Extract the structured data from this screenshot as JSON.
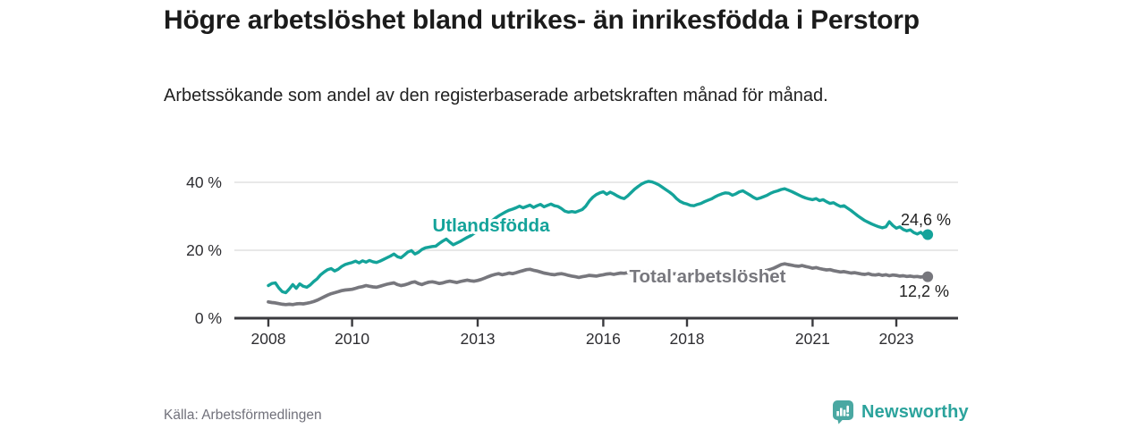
{
  "header": {
    "title": "Högre arbetslöshet bland utrikes- än inrikesfödda i Perstorp",
    "subtitle": "Arbetssökande som andel av den registerbaserade arbetskraften månad för månad."
  },
  "footer": {
    "source": "Källa: Arbetsförmedlingen",
    "brand": "Newsworthy",
    "brand_icon": "bar-chart-speech-bubble-icon"
  },
  "colors": {
    "accent_teal": "#14a39a",
    "series_gray": "#77777d",
    "axis": "#3a3a3e",
    "axis_text": "#2e2e32",
    "grid": "#d9d9d9",
    "title_text": "#1b1b1b",
    "muted_text": "#71717b",
    "end_label_text": "#222222",
    "brand_teal": "#2ba39c",
    "brand_icon_teal": "#4aa8a2"
  },
  "chart_data": {
    "type": "line",
    "title": "Högre arbetslöshet bland utrikes- än inrikesfödda i Perstorp",
    "subtitle": "Arbetssökande som andel av den registerbaserade arbetskraften månad för månad.",
    "unit": "%",
    "frequency": "monthly",
    "x_start": "2008-01",
    "x_end": "2023-10",
    "x_ticks": [
      2008,
      2010,
      2013,
      2016,
      2018,
      2021,
      2023
    ],
    "y_ticks": [
      {
        "value": 0,
        "label": "0 %"
      },
      {
        "value": 20,
        "label": "20 %"
      },
      {
        "value": 40,
        "label": "40 %"
      }
    ],
    "ylim": [
      0,
      42
    ],
    "xlim_years": [
      2007.2,
      2024.5
    ],
    "grid": "horizontal-only",
    "legend_position": "inline-labels",
    "series": [
      {
        "name": "Utlandsfödda",
        "color": "#14a39a",
        "end_label": "24,6 %",
        "last_value": 24.6,
        "values": [
          9.6,
          10.2,
          10.4,
          8.9,
          7.8,
          7.5,
          8.6,
          9.9,
          8.8,
          10.1,
          9.4,
          9.1,
          9.8,
          10.8,
          11.6,
          12.8,
          13.6,
          14.3,
          14.6,
          13.9,
          14.4,
          15.2,
          15.8,
          16.1,
          16.4,
          16.8,
          16.3,
          16.9,
          16.5,
          17.0,
          16.6,
          16.4,
          16.8,
          17.3,
          17.8,
          18.3,
          18.9,
          18.1,
          17.8,
          18.6,
          19.5,
          19.9,
          18.9,
          19.4,
          20.2,
          20.7,
          20.9,
          21.1,
          21.2,
          22.0,
          22.7,
          23.3,
          22.4,
          21.6,
          22.1,
          22.6,
          23.2,
          23.8,
          24.3,
          25.0,
          25.6,
          26.3,
          27.1,
          27.9,
          28.6,
          29.4,
          30.1,
          30.7,
          31.3,
          31.8,
          32.1,
          32.5,
          33.0,
          32.5,
          32.9,
          33.3,
          32.6,
          33.1,
          33.5,
          32.8,
          33.2,
          33.6,
          33.1,
          32.9,
          32.3,
          31.5,
          31.2,
          31.4,
          31.2,
          31.6,
          32.0,
          33.0,
          34.5,
          35.6,
          36.4,
          36.9,
          37.2,
          36.5,
          37.1,
          36.6,
          36.0,
          35.5,
          35.2,
          36.0,
          37.0,
          38.0,
          38.8,
          39.5,
          40.0,
          40.3,
          40.1,
          39.7,
          39.2,
          38.5,
          37.8,
          37.1,
          36.3,
          35.2,
          34.4,
          33.9,
          33.6,
          33.2,
          33.1,
          33.5,
          33.8,
          34.3,
          34.7,
          35.1,
          35.7,
          36.2,
          36.6,
          36.9,
          36.8,
          36.2,
          36.6,
          37.2,
          37.5,
          36.9,
          36.3,
          35.6,
          35.1,
          35.4,
          35.8,
          36.2,
          36.8,
          37.2,
          37.5,
          37.9,
          38.1,
          37.7,
          37.3,
          36.8,
          36.3,
          35.8,
          35.4,
          35.1,
          34.9,
          35.2,
          34.6,
          34.9,
          34.3,
          33.8,
          34.0,
          33.4,
          32.9,
          33.1,
          32.4,
          31.7,
          30.9,
          30.1,
          29.4,
          28.7,
          28.2,
          27.7,
          27.3,
          26.9,
          26.6,
          26.9,
          28.4,
          27.3,
          26.5,
          26.9,
          26.1,
          25.7,
          26.0,
          25.2,
          24.8,
          25.3,
          24.4,
          24.6
        ]
      },
      {
        "name": "Total arbetslöshet",
        "color": "#77777d",
        "end_label": "12,2 %",
        "last_value": 12.2,
        "values": [
          4.8,
          4.6,
          4.5,
          4.3,
          4.1,
          4.0,
          4.1,
          4.0,
          4.2,
          4.3,
          4.2,
          4.4,
          4.6,
          4.9,
          5.3,
          5.8,
          6.3,
          6.8,
          7.2,
          7.5,
          7.8,
          8.1,
          8.3,
          8.4,
          8.5,
          8.8,
          9.1,
          9.3,
          9.6,
          9.4,
          9.2,
          9.1,
          9.4,
          9.7,
          10.0,
          10.2,
          10.4,
          9.9,
          9.6,
          9.8,
          10.1,
          10.5,
          10.7,
          10.2,
          9.9,
          10.3,
          10.6,
          10.7,
          10.5,
          10.2,
          10.4,
          10.7,
          10.9,
          10.7,
          10.5,
          10.8,
          11.0,
          11.2,
          11.0,
          10.9,
          11.1,
          11.4,
          11.8,
          12.2,
          12.6,
          12.9,
          13.1,
          12.8,
          13.0,
          13.3,
          13.1,
          13.4,
          13.7,
          14.0,
          14.3,
          14.4,
          14.1,
          13.9,
          13.6,
          13.3,
          13.1,
          12.9,
          12.8,
          13.0,
          13.1,
          12.9,
          12.6,
          12.4,
          12.2,
          12.0,
          12.2,
          12.4,
          12.6,
          12.5,
          12.4,
          12.6,
          12.8,
          13.0,
          13.1,
          12.9,
          13.1,
          13.3,
          13.2,
          13.4,
          13.3,
          13.5,
          13.4,
          13.6,
          13.7,
          13.5,
          13.4,
          13.2,
          13.3,
          13.1,
          13.0,
          12.9,
          13.1,
          13.0,
          12.8,
          12.9,
          13.0,
          13.1,
          12.9,
          12.8,
          12.6,
          12.7,
          12.9,
          13.0,
          13.2,
          13.3,
          13.1,
          13.0,
          12.9,
          12.7,
          12.8,
          13.0,
          13.2,
          13.4,
          13.3,
          13.5,
          13.6,
          13.8,
          13.9,
          14.1,
          14.4,
          14.8,
          15.3,
          15.8,
          16.0,
          15.8,
          15.6,
          15.4,
          15.3,
          15.5,
          15.2,
          15.0,
          14.7,
          14.9,
          14.6,
          14.4,
          14.2,
          14.3,
          14.0,
          13.8,
          13.6,
          13.7,
          13.5,
          13.3,
          13.4,
          13.2,
          13.0,
          12.9,
          13.1,
          12.8,
          12.7,
          12.9,
          12.6,
          12.8,
          12.5,
          12.7,
          12.6,
          12.4,
          12.5,
          12.3,
          12.4,
          12.2,
          12.3,
          12.1,
          12.3,
          12.2
        ]
      }
    ]
  }
}
